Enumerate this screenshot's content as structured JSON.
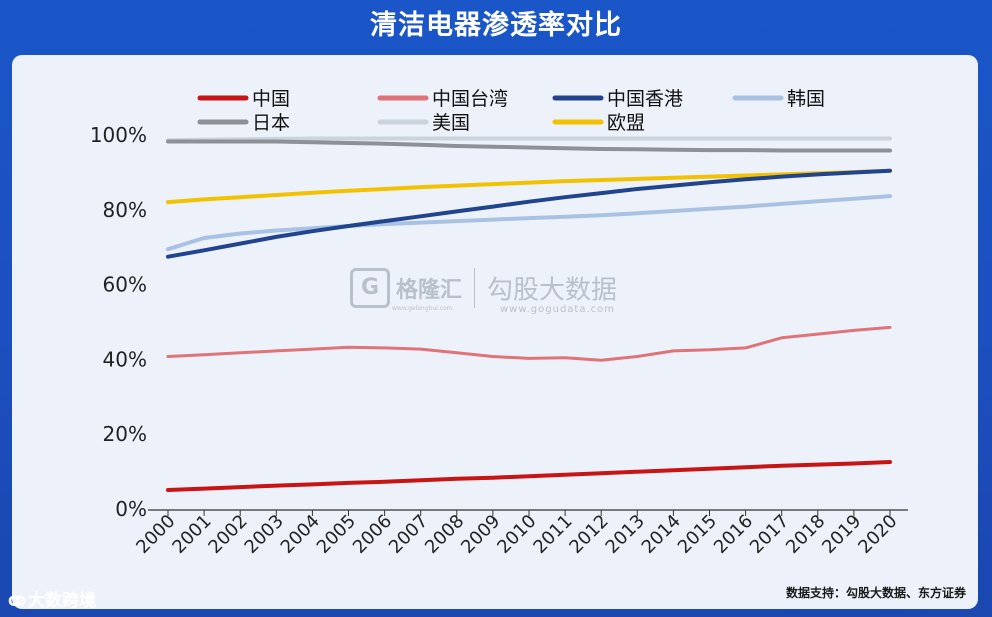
{
  "title": "清洁电器渗透率对比",
  "footnote": "数据支持：勾股大数据、东方证券",
  "watermark_center": {
    "brand1": "格隆汇",
    "brand1_icon": "G",
    "brand1_url": "www.gelonghui.com",
    "brand2": "勾股大数据",
    "brand2_url": "www.gogudata.com"
  },
  "watermark_corner": {
    "icon": "weibo-icon",
    "text": "大数跨境"
  },
  "chart_data": {
    "type": "line",
    "x": [
      "2000",
      "2001",
      "2002",
      "2003",
      "2004",
      "2005",
      "2006",
      "2007",
      "2008",
      "2009",
      "2010",
      "2011",
      "2012",
      "2013",
      "2014",
      "2015",
      "2016",
      "2017",
      "2018",
      "2019",
      "2020"
    ],
    "ylim": [
      0,
      100
    ],
    "yticks": [
      0,
      20,
      40,
      60,
      80,
      100
    ],
    "ytick_labels": [
      "0%",
      "20%",
      "40%",
      "60%",
      "80%",
      "100%"
    ],
    "grid": false,
    "legend_position": "top",
    "series": [
      {
        "name": "中国",
        "color": "#c81414",
        "width": 4,
        "values": [
          4.8,
          5.2,
          5.6,
          6.0,
          6.3,
          6.7,
          7.0,
          7.4,
          7.8,
          8.1,
          8.5,
          8.9,
          9.3,
          9.7,
          10.1,
          10.5,
          10.9,
          11.3,
          11.6,
          11.9,
          12.3
        ]
      },
      {
        "name": "中国台湾",
        "color": "#e07377",
        "width": 3,
        "values": [
          40.5,
          41.0,
          41.5,
          42.0,
          42.5,
          43.0,
          42.8,
          42.5,
          41.5,
          40.5,
          40.0,
          40.2,
          39.5,
          40.5,
          42.0,
          42.3,
          42.8,
          45.5,
          46.5,
          47.5,
          48.3
        ]
      },
      {
        "name": "中国香港",
        "color": "#21448f",
        "width": 4,
        "values": [
          67.2,
          68.9,
          70.7,
          72.5,
          74.0,
          75.4,
          76.7,
          78.0,
          79.3,
          80.6,
          81.9,
          83.1,
          84.2,
          85.3,
          86.2,
          87.1,
          87.9,
          88.6,
          89.2,
          89.7,
          90.2
        ]
      },
      {
        "name": "韩国",
        "color": "#a9c2e4",
        "width": 4,
        "values": [
          69.2,
          72.2,
          73.4,
          74.2,
          74.8,
          75.4,
          75.9,
          76.3,
          76.7,
          77.1,
          77.5,
          77.9,
          78.3,
          78.8,
          79.4,
          80.0,
          80.6,
          81.3,
          82.0,
          82.7,
          83.4
        ]
      },
      {
        "name": "日本",
        "color": "#8d9096",
        "width": 4,
        "values": [
          98.0,
          98.0,
          98.0,
          98.0,
          97.8,
          97.6,
          97.4,
          97.1,
          96.8,
          96.6,
          96.4,
          96.2,
          96.0,
          95.9,
          95.8,
          95.7,
          95.7,
          95.6,
          95.6,
          95.6,
          95.6
        ]
      },
      {
        "name": "美国",
        "color": "#cbd3dc",
        "width": 4,
        "values": [
          98.3,
          98.5,
          98.6,
          98.7,
          98.8,
          98.8,
          98.8,
          98.8,
          98.8,
          98.8,
          98.8,
          98.8,
          98.8,
          98.8,
          98.8,
          98.8,
          98.8,
          98.8,
          98.8,
          98.8,
          98.8
        ]
      },
      {
        "name": "欧盟",
        "color": "#f2c200",
        "width": 4,
        "values": [
          81.8,
          82.5,
          83.1,
          83.7,
          84.3,
          84.8,
          85.3,
          85.8,
          86.2,
          86.6,
          87.0,
          87.4,
          87.7,
          88.0,
          88.3,
          88.6,
          88.9,
          89.2,
          89.5,
          89.8,
          90.2
        ]
      }
    ]
  }
}
